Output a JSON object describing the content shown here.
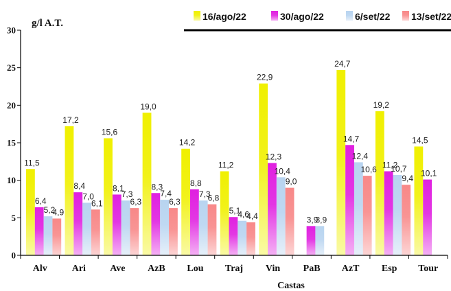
{
  "chart_data": {
    "type": "bar",
    "ylabel": "g/l A.T.",
    "xlabel": "Castas",
    "ylim": [
      0,
      30
    ],
    "yticks": [
      "0",
      "5",
      "10",
      "15",
      "20",
      "25",
      "30"
    ],
    "legend_position": "top-right",
    "categories": [
      "Alv",
      "Ari",
      "Ave",
      "AzB",
      "Lou",
      "Traj",
      "Vin",
      "PaB",
      "AzT",
      "Esp",
      "Tour"
    ],
    "series": [
      {
        "name": "16/ago/22",
        "color": "#f0f000",
        "values": [
          11.5,
          17.2,
          15.6,
          19.0,
          14.2,
          11.2,
          22.9,
          null,
          24.7,
          19.2,
          14.5
        ],
        "labels": [
          "11,5",
          "17,2",
          "15,6",
          "19,0",
          "14,2",
          "11,2",
          "22,9",
          null,
          "24,7",
          "19,2",
          "14,5"
        ]
      },
      {
        "name": "30/ago/22",
        "color": "#e020e0",
        "values": [
          6.4,
          8.4,
          8.1,
          8.3,
          8.8,
          5.1,
          12.3,
          3.9,
          14.7,
          11.2,
          10.1
        ],
        "labels": [
          "6,4",
          "8,4",
          "8,1",
          "8,3",
          "8,8",
          "5,1",
          "12,3",
          "3,9",
          "14,7",
          "11,2",
          "10,1"
        ]
      },
      {
        "name": "6/set/22",
        "color": "#b8d4f0",
        "values": [
          5.2,
          7.0,
          7.3,
          7.4,
          7.3,
          4.6,
          10.4,
          3.9,
          12.4,
          10.7,
          null
        ],
        "labels": [
          "5,2",
          "7,0",
          "7,3",
          "7,4",
          "7,3",
          "4,6",
          "10,4",
          "3,9",
          "12,4",
          "10,7",
          null
        ]
      },
      {
        "name": "13/set/22",
        "color": "#f88888",
        "values": [
          4.9,
          6.1,
          6.3,
          6.3,
          6.8,
          4.4,
          9.0,
          null,
          10.6,
          9.4,
          null
        ],
        "labels": [
          "4,9",
          "6,1",
          "6,3",
          "6,3",
          "6,8",
          "4,4",
          "9,0",
          null,
          "10,6",
          "9,4",
          null
        ]
      }
    ]
  }
}
